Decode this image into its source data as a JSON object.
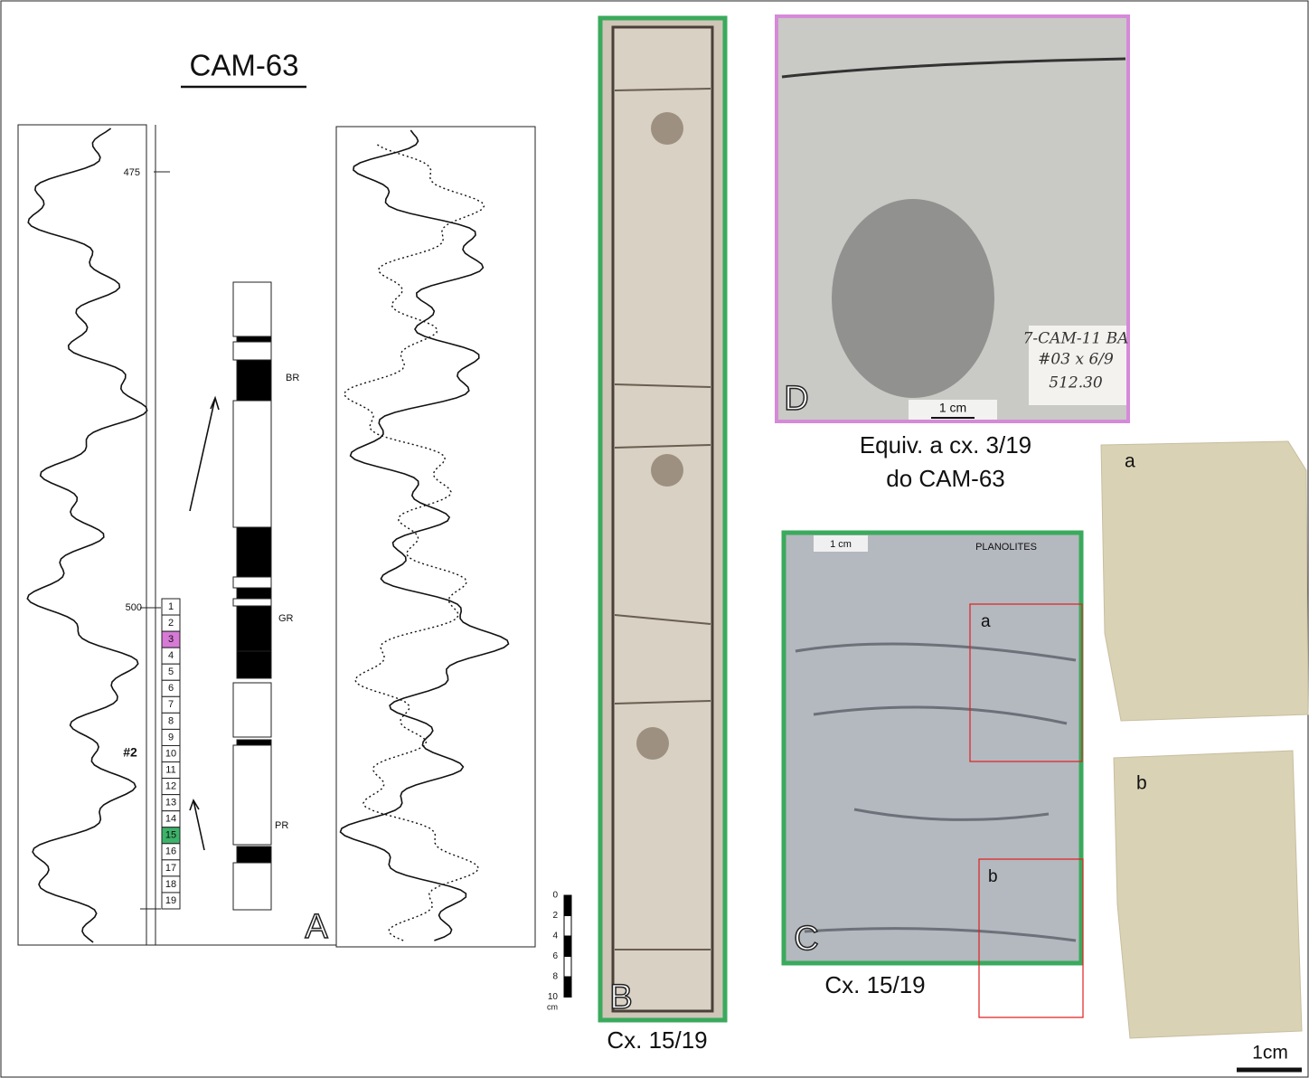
{
  "panel_a": {
    "title": "CAM-63",
    "depth_ticks": [
      475,
      500
    ],
    "boxes": [
      1,
      2,
      3,
      4,
      5,
      6,
      7,
      8,
      9,
      10,
      11,
      12,
      13,
      14,
      15,
      16,
      17,
      18,
      19
    ],
    "well_label": "#2",
    "labels": [
      "BR",
      "GR",
      "PR"
    ],
    "letter": "A"
  },
  "scale_bar": {
    "ticks": [
      0,
      2,
      4,
      6,
      8,
      10
    ],
    "unit": "cm"
  },
  "panel_b": {
    "letter": "B",
    "caption": "Cx. 15/19"
  },
  "panel_d": {
    "letter": "D",
    "scale": "1 cm",
    "handwriting": [
      "7-CAM-11 BA",
      "#03 x 6/9",
      "512.30"
    ]
  },
  "equiv": [
    "Equiv. a cx. 3/19",
    "do CAM-63"
  ],
  "panel_c": {
    "letter": "C",
    "caption": "Cx. 15/19",
    "scale": "1 cm",
    "note": "PLANOLITES",
    "insets": [
      "a",
      "b"
    ]
  },
  "samples": {
    "labels": [
      "a",
      "b"
    ],
    "scale": "1cm"
  }
}
